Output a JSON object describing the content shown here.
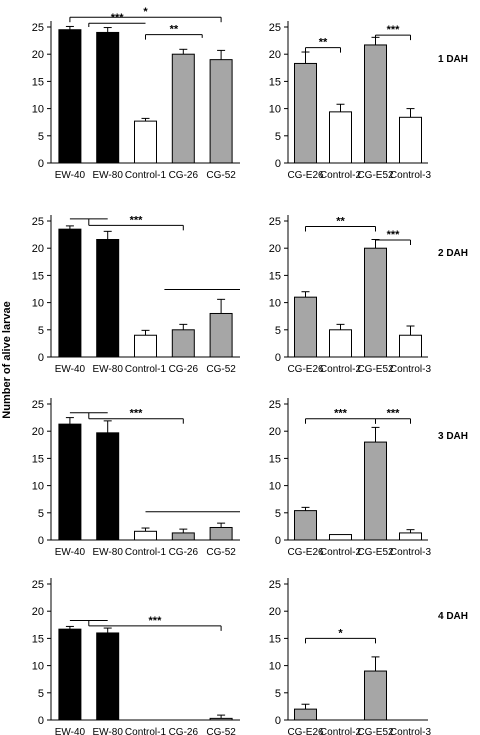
{
  "figure": {
    "ylabel": "Number of alive larvae"
  },
  "chart_data": [
    {
      "type": "bar",
      "panel": "left",
      "row_label": "",
      "categories": [
        "EW-40",
        "EW-80",
        "Control-1",
        "CG-26",
        "CG-52"
      ],
      "values": [
        24.5,
        24.0,
        7.7,
        20.0,
        19.0
      ],
      "errors": [
        0.6,
        0.9,
        0.5,
        0.9,
        1.7
      ],
      "fills": [
        "#000000",
        "#000000",
        "#ffffff",
        "#a6a6a6",
        "#a6a6a6"
      ],
      "ylim": [
        0,
        25
      ],
      "yticks": [
        0,
        5,
        10,
        15,
        20,
        25
      ],
      "brackets": [
        {
          "x1": 0,
          "x2": 4,
          "y": 26.8,
          "label": "*",
          "ticks": true
        },
        {
          "x1": 0.5,
          "x2": 2,
          "y": 25.7,
          "label": "***",
          "ticks": false,
          "stub": true,
          "stubx": 0.5,
          "stuby": 25.0
        },
        {
          "x1": 2,
          "x2": 3.5,
          "y": 23.6,
          "label": "**",
          "ticks": false,
          "stub": true,
          "stubx": 3.5,
          "stuby": 23.0,
          "leftdrop": true
        }
      ]
    },
    {
      "type": "bar",
      "panel": "right",
      "row_label": "1 DAH",
      "categories": [
        "CG-E26",
        "Control-2",
        "CG-E52",
        "Control-3"
      ],
      "values": [
        18.3,
        9.4,
        21.7,
        8.4
      ],
      "errors": [
        2.1,
        1.4,
        1.4,
        1.6
      ],
      "fills": [
        "#a6a6a6",
        "#ffffff",
        "#a6a6a6",
        "#ffffff"
      ],
      "ylim": [
        0,
        25
      ],
      "yticks": [
        0,
        5,
        10,
        15,
        20,
        25
      ],
      "brackets": [
        {
          "x1": 0,
          "x2": 1,
          "y": 21.2,
          "label": "**",
          "ticks": true
        },
        {
          "x1": 2,
          "x2": 3,
          "y": 23.5,
          "label": "***",
          "ticks": true
        }
      ]
    },
    {
      "type": "bar",
      "panel": "left",
      "row_label": "",
      "categories": [
        "EW-40",
        "EW-80",
        "Control-1",
        "CG-26",
        "CG-52"
      ],
      "values": [
        23.5,
        21.6,
        4.0,
        5.0,
        8.0
      ],
      "errors": [
        0.6,
        1.5,
        0.9,
        1.0,
        2.6
      ],
      "fills": [
        "#000000",
        "#000000",
        "#ffffff",
        "#a6a6a6",
        "#a6a6a6"
      ],
      "ylim": [
        0,
        25
      ],
      "yticks": [
        0,
        5,
        10,
        15,
        20,
        25
      ],
      "brackets": [
        {
          "x1": 0,
          "x2": 1,
          "y": 25.4,
          "label": "",
          "ticks": false
        },
        {
          "x1": 0.5,
          "x2": 3,
          "y": 24.2,
          "label": "***",
          "ticks": false,
          "stub": true,
          "stubx": 0.5,
          "stuby": 25.4,
          "rightdrop": true
        },
        {
          "x1": 2.5,
          "x2": 4.5,
          "y": 12.4,
          "label": "",
          "ticks": false
        }
      ]
    },
    {
      "type": "bar",
      "panel": "right",
      "row_label": "2 DAH",
      "categories": [
        "CG-E26",
        "Control-2",
        "CG-E52",
        "Control-3"
      ],
      "values": [
        11.0,
        5.0,
        20.0,
        4.0
      ],
      "errors": [
        1.0,
        1.0,
        1.6,
        1.7
      ],
      "fills": [
        "#a6a6a6",
        "#ffffff",
        "#a6a6a6",
        "#ffffff"
      ],
      "ylim": [
        0,
        25
      ],
      "yticks": [
        0,
        5,
        10,
        15,
        20,
        25
      ],
      "brackets": [
        {
          "x1": 0,
          "x2": 2,
          "y": 24.0,
          "label": "**",
          "ticks": true
        },
        {
          "x1": 2,
          "x2": 3,
          "y": 21.5,
          "label": "***",
          "ticks": true
        }
      ]
    },
    {
      "type": "bar",
      "panel": "left",
      "row_label": "",
      "categories": [
        "EW-40",
        "EW-80",
        "Control-1",
        "CG-26",
        "CG-52"
      ],
      "values": [
        21.3,
        19.7,
        1.6,
        1.3,
        2.3
      ],
      "errors": [
        1.2,
        2.2,
        0.6,
        0.7,
        0.8
      ],
      "fills": [
        "#000000",
        "#000000",
        "#ffffff",
        "#a6a6a6",
        "#a6a6a6"
      ],
      "ylim": [
        0,
        25
      ],
      "yticks": [
        0,
        5,
        10,
        15,
        20,
        25
      ],
      "brackets": [
        {
          "x1": 0,
          "x2": 1,
          "y": 23.4,
          "label": "",
          "ticks": false
        },
        {
          "x1": 0.5,
          "x2": 3,
          "y": 22.3,
          "label": "***",
          "ticks": false,
          "stub": true,
          "stubx": 0.5,
          "stuby": 23.4,
          "rightdrop": true
        },
        {
          "x1": 2,
          "x2": 4.5,
          "y": 5.2,
          "label": "",
          "ticks": false
        }
      ]
    },
    {
      "type": "bar",
      "panel": "right",
      "row_label": "3 DAH",
      "categories": [
        "CG-E26",
        "Control-2",
        "CG-E52",
        "Control-3"
      ],
      "values": [
        5.4,
        1.0,
        18.0,
        1.3
      ],
      "errors": [
        0.6,
        0.0,
        2.7,
        0.6
      ],
      "fills": [
        "#a6a6a6",
        "#ffffff",
        "#a6a6a6",
        "#ffffff"
      ],
      "ylim": [
        0,
        25
      ],
      "yticks": [
        0,
        5,
        10,
        15,
        20,
        25
      ],
      "brackets": [
        {
          "x1": 0,
          "x2": 2,
          "y": 22.3,
          "label": "***",
          "ticks": true
        },
        {
          "x1": 2,
          "x2": 3,
          "y": 22.3,
          "label": "***",
          "ticks": true
        }
      ]
    },
    {
      "type": "bar",
      "panel": "left",
      "row_label": "",
      "categories": [
        "EW-40",
        "EW-80",
        "Control-1",
        "CG-26",
        "CG-52"
      ],
      "values": [
        16.7,
        16.0,
        0,
        0,
        0.3
      ],
      "errors": [
        0.5,
        0.9,
        0,
        0,
        0.6
      ],
      "fills": [
        "#000000",
        "#000000",
        "#ffffff",
        "#a6a6a6",
        "#a6a6a6"
      ],
      "ylim": [
        0,
        25
      ],
      "yticks": [
        0,
        5,
        10,
        15,
        20,
        25
      ],
      "brackets": [
        {
          "x1": 0,
          "x2": 1,
          "y": 18.3,
          "label": "",
          "ticks": false
        },
        {
          "x1": 0.5,
          "x2": 4,
          "y": 17.3,
          "label": "***",
          "ticks": false,
          "stub": true,
          "stubx": 0.5,
          "stuby": 18.3,
          "rightdrop": true
        }
      ]
    },
    {
      "type": "bar",
      "panel": "right",
      "row_label": "4 DAH",
      "categories": [
        "CG-E26",
        "Control-2",
        "CG-E52",
        "Control-3"
      ],
      "values": [
        2.0,
        0,
        9.0,
        0
      ],
      "errors": [
        0.9,
        0,
        2.6,
        0
      ],
      "fills": [
        "#a6a6a6",
        "#ffffff",
        "#a6a6a6",
        "#ffffff"
      ],
      "ylim": [
        0,
        25
      ],
      "yticks": [
        0,
        5,
        10,
        15,
        20,
        25
      ],
      "brackets": [
        {
          "x1": 0,
          "x2": 2,
          "y": 15.0,
          "label": "*",
          "ticks": true
        }
      ]
    }
  ]
}
